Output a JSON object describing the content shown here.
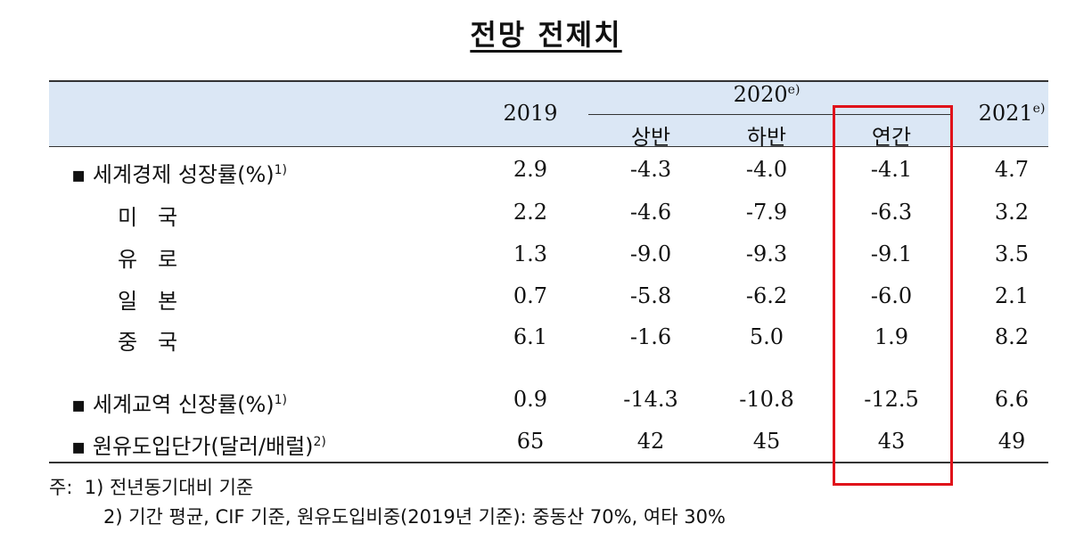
{
  "title": "전망 전제치",
  "header": {
    "col_2019": "2019",
    "col_2020": "2020",
    "col_2020_sup": "e)",
    "col_2021": "2021",
    "col_2021_sup": "e)",
    "sub_h1": "상반",
    "sub_h2": "하반",
    "sub_annual": "연간"
  },
  "rows": [
    {
      "label": "▪ 세계경제 성장률(%)",
      "sup": "1)",
      "v": [
        "2.9",
        "-4.3",
        "-4.0",
        "-4.1",
        "4.7"
      ]
    },
    {
      "label": "미   국",
      "sup": "",
      "v": [
        "2.2",
        "-4.6",
        "-7.9",
        "-6.3",
        "3.2"
      ]
    },
    {
      "label": "유   로",
      "sup": "",
      "v": [
        "1.3",
        "-9.0",
        "-9.3",
        "-9.1",
        "3.5"
      ]
    },
    {
      "label": "일   본",
      "sup": "",
      "v": [
        "0.7",
        "-5.8",
        "-6.2",
        "-6.0",
        "2.1"
      ]
    },
    {
      "label": "중   국",
      "sup": "",
      "v": [
        "6.1",
        "-1.6",
        "5.0",
        "1.9",
        "8.2"
      ]
    },
    {
      "label": "▪ 세계교역 신장률(%)",
      "sup": "1)",
      "v": [
        "0.9",
        "-14.3",
        "-10.8",
        "-12.5",
        "6.6"
      ]
    },
    {
      "label": "▪ 원유도입단가(달러/배럴)",
      "sup": "2)",
      "v": [
        "65",
        "42",
        "45",
        "43",
        "49"
      ]
    }
  ],
  "notes": {
    "n1": "주:  1) 전년동기대비 기준",
    "n2": "2) 기간 평균, CIF 기준, 원유도입비중(2019년 기준): 중동산 70%, 여타 30%"
  },
  "highlight_color": "#e0121a"
}
